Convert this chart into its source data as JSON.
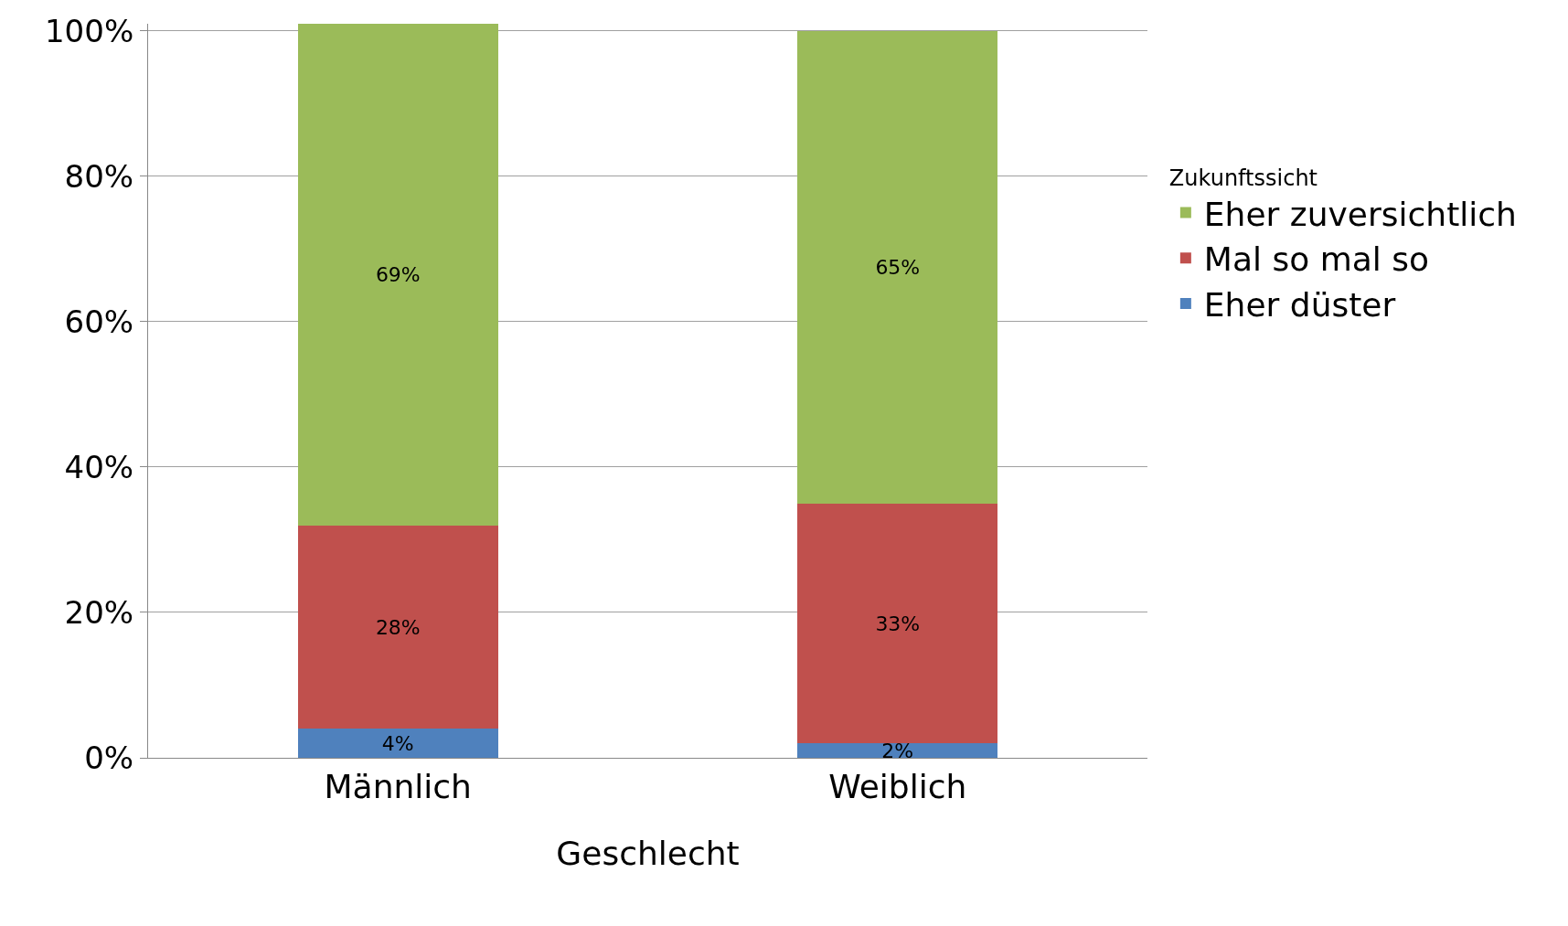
{
  "chart_data": {
    "type": "bar",
    "stacked": true,
    "xlabel": "Geschlecht",
    "legend_title": "Zukunftssicht",
    "categories": [
      "Männlich",
      "Weiblich"
    ],
    "series": [
      {
        "name": "Eher düster",
        "color": "#4f81bd",
        "values": [
          4,
          2
        ],
        "value_labels": [
          "4%",
          "2%"
        ]
      },
      {
        "name": "Mal so mal so",
        "color": "#c0504d",
        "values": [
          28,
          33
        ],
        "value_labels": [
          "28%",
          "33%"
        ]
      },
      {
        "name": "Eher zuversichtlich",
        "color": "#9bbb59",
        "values": [
          69,
          65
        ],
        "value_labels": [
          "69%",
          "65%"
        ]
      }
    ],
    "ylim": [
      0,
      101
    ],
    "yticks": [
      {
        "value": 0,
        "label": "0%"
      },
      {
        "value": 20,
        "label": "20%"
      },
      {
        "value": 40,
        "label": "40%"
      },
      {
        "value": 60,
        "label": "60%"
      },
      {
        "value": 80,
        "label": "80%"
      },
      {
        "value": 100,
        "label": "100%"
      }
    ],
    "grid": "y",
    "legend": "right"
  }
}
